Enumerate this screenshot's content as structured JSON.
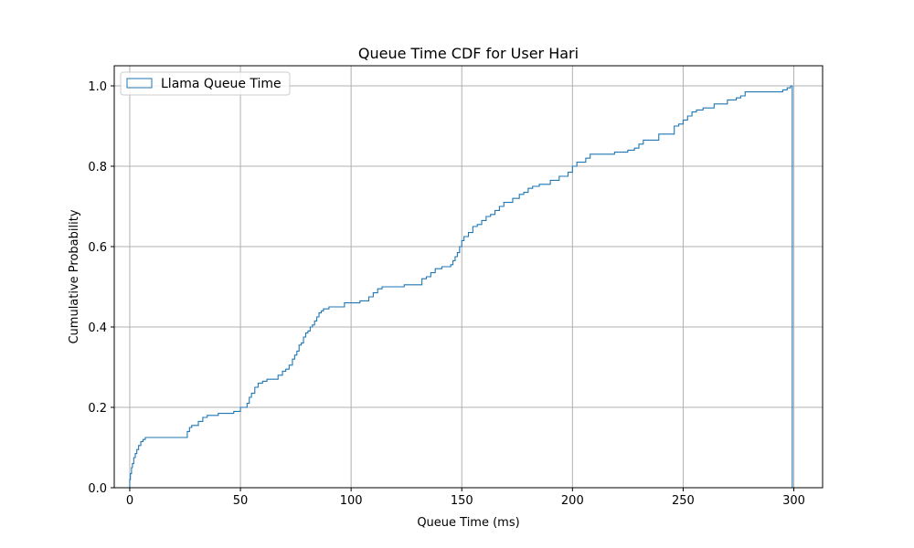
{
  "chart_data": {
    "type": "line",
    "title": "Queue Time CDF for User Hari",
    "xlabel": "Queue Time (ms)",
    "ylabel": "Cumulative Probability",
    "xlim": [
      -7,
      313
    ],
    "ylim": [
      0,
      1.05
    ],
    "xticks": [
      0,
      50,
      100,
      150,
      200,
      250,
      300
    ],
    "yticks": [
      0.0,
      0.2,
      0.4,
      0.6,
      0.8,
      1.0
    ],
    "ytick_labels": [
      "0.0",
      "0.2",
      "0.4",
      "0.6",
      "0.8",
      "1.0"
    ],
    "grid": true,
    "legend_position": "top-left",
    "series": [
      {
        "name": "Llama  Queue Time",
        "color": "#1f77b4",
        "drawstyle": "step-cumulative-histogram",
        "x": [
          0,
          0.3,
          0.8,
          1.2,
          1.8,
          2.5,
          3.2,
          4.0,
          5.0,
          6.0,
          7.0,
          8.0,
          26.0,
          27.0,
          28.0,
          31.0,
          33.0,
          35.0,
          40.0,
          47.0,
          50.0,
          53.0,
          54.0,
          55.0,
          56.5,
          58.0,
          60.0,
          62.0,
          67.0,
          69.0,
          70.5,
          72.0,
          73.5,
          74.5,
          75.5,
          76.5,
          77.5,
          78.5,
          79.5,
          80.5,
          81.5,
          82.5,
          83.5,
          84.5,
          85.5,
          86.5,
          87.5,
          88.5,
          90.0,
          97.0,
          104.0,
          108.0,
          110.0,
          112.0,
          114.0,
          116.0,
          124.0,
          132.0,
          134.0,
          136.0,
          138.0,
          141.0,
          145.0,
          146.0,
          147.0,
          148.0,
          149.0,
          150.0,
          151.0,
          153.0,
          155.0,
          157.0,
          159.0,
          161.0,
          163.0,
          165.0,
          167.0,
          169.0,
          173.0,
          176.0,
          178.0,
          180.0,
          182.0,
          185.0,
          190.0,
          194.0,
          198.0,
          200.0,
          202.0,
          206.0,
          208.0,
          219.0,
          225.0,
          228.0,
          230.0,
          232.0,
          239.0,
          246.0,
          248.0,
          250.0,
          252.0,
          254.0,
          256.0,
          259.0,
          264.0,
          270.0,
          274.0,
          276.0,
          278.0,
          295.0,
          297.0,
          298.5
        ],
        "y": [
          0.02,
          0.035,
          0.05,
          0.06,
          0.075,
          0.085,
          0.095,
          0.105,
          0.115,
          0.12,
          0.125,
          0.125,
          0.14,
          0.15,
          0.155,
          0.165,
          0.175,
          0.18,
          0.185,
          0.19,
          0.2,
          0.21,
          0.225,
          0.235,
          0.25,
          0.26,
          0.265,
          0.27,
          0.28,
          0.29,
          0.295,
          0.305,
          0.32,
          0.33,
          0.34,
          0.355,
          0.36,
          0.375,
          0.385,
          0.39,
          0.4,
          0.405,
          0.415,
          0.425,
          0.435,
          0.44,
          0.445,
          0.445,
          0.45,
          0.46,
          0.465,
          0.475,
          0.485,
          0.495,
          0.5,
          0.5,
          0.505,
          0.52,
          0.525,
          0.535,
          0.545,
          0.55,
          0.555,
          0.565,
          0.575,
          0.585,
          0.6,
          0.615,
          0.625,
          0.635,
          0.65,
          0.655,
          0.665,
          0.675,
          0.68,
          0.69,
          0.7,
          0.71,
          0.72,
          0.73,
          0.735,
          0.745,
          0.75,
          0.755,
          0.765,
          0.775,
          0.785,
          0.8,
          0.81,
          0.82,
          0.83,
          0.835,
          0.84,
          0.845,
          0.855,
          0.865,
          0.88,
          0.9,
          0.905,
          0.915,
          0.925,
          0.935,
          0.94,
          0.945,
          0.955,
          0.965,
          0.97,
          0.975,
          0.985,
          0.99,
          0.995,
          1.0
        ]
      }
    ]
  }
}
